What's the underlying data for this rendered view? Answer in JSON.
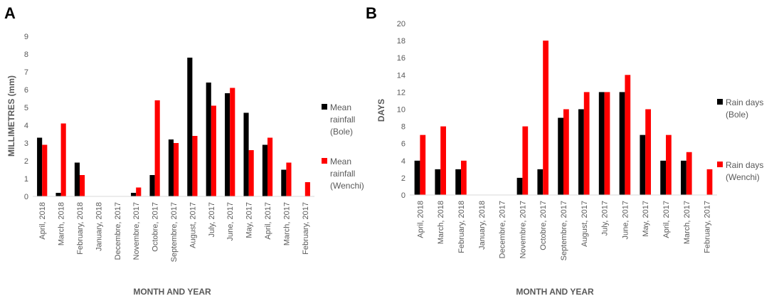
{
  "chart_data": [
    {
      "type": "bar",
      "panel_label": "A",
      "categories": [
        "April, 2018",
        "March, 2018",
        "February, 2018",
        "January, 2018",
        "Decembre, 2017",
        "Novembre, 2017",
        "Octobre, 2017",
        "Septembre, 2017",
        "August, 2017",
        "July, 2017",
        "June, 2017",
        "May, 2017",
        "April, 2017",
        "March, 2017",
        "February, 2017"
      ],
      "series": [
        {
          "name": [
            "Mean",
            "rainfall",
            "(Bole)"
          ],
          "color": "#000000",
          "values": [
            3.3,
            0.2,
            1.9,
            0,
            0,
            0.2,
            1.2,
            3.2,
            7.8,
            6.4,
            5.8,
            4.7,
            2.9,
            1.5,
            0
          ]
        },
        {
          "name": [
            "Mean",
            "rainfall",
            "(Wenchi)"
          ],
          "color": "#ff0000",
          "values": [
            2.9,
            4.1,
            1.2,
            0,
            0,
            0.5,
            5.4,
            3.0,
            3.4,
            5.1,
            6.1,
            2.6,
            3.3,
            1.9,
            0.8
          ]
        }
      ],
      "xlabel": "MONTH AND YEAR",
      "ylabel": "MILLIMETRES (mm)",
      "ylim": [
        0,
        9
      ],
      "yticks": [
        "0",
        "1",
        "2",
        "3",
        "4",
        "5",
        "6",
        "7",
        "8",
        "9"
      ],
      "grid": false,
      "legend_position": "right"
    },
    {
      "type": "bar",
      "panel_label": "B",
      "categories": [
        "April, 2018",
        "March, 2018",
        "February, 2018",
        "January, 2018",
        "Decembre, 2017",
        "Novembre, 2017",
        "Octobre, 2017",
        "Septembre, 2017",
        "August, 2017",
        "July, 2017",
        "June, 2017",
        "May, 2017",
        "April, 2017",
        "March, 2017",
        "February, 2017"
      ],
      "series": [
        {
          "name": [
            "Rain days",
            "(Bole)"
          ],
          "color": "#000000",
          "values": [
            4,
            3,
            3,
            0,
            0,
            2,
            3,
            9,
            10,
            12,
            12,
            7,
            4,
            4,
            0
          ]
        },
        {
          "name": [
            "Rain days",
            "(Wenchi)"
          ],
          "color": "#ff0000",
          "values": [
            7,
            8,
            4,
            0,
            0,
            8,
            18,
            10,
            12,
            12,
            14,
            10,
            7,
            5,
            3
          ]
        }
      ],
      "xlabel": "MONTH AND YEAR",
      "ylabel": "DAYS",
      "ylim": [
        0,
        20
      ],
      "yticks": [
        "0",
        "2",
        "4",
        "6",
        "8",
        "10",
        "12",
        "14",
        "16",
        "18",
        "20"
      ],
      "grid": false,
      "legend_position": "right"
    }
  ]
}
